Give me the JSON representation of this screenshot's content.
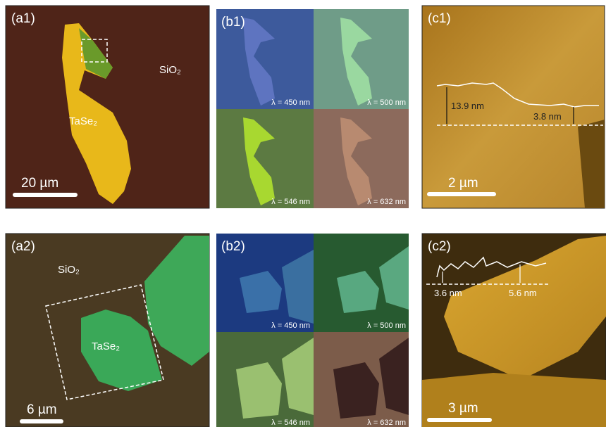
{
  "panels": [
    {
      "label": "(a1)",
      "substrate": "SiO₂",
      "flake": "TaSe₂",
      "scale_bar": "20 µm"
    },
    {
      "label": "(b1)",
      "wavelengths": [
        "λ = 450 nm",
        "λ = 500 nm",
        "λ = 546 nm",
        "λ = 632 nm"
      ]
    },
    {
      "label": "(c1)",
      "heights": [
        "13.9 nm",
        "3.8 nm"
      ],
      "scale_bar": "2 µm"
    },
    {
      "label": "(a2)",
      "substrate": "SiO₂",
      "flake": "TaSe₂",
      "scale_bar": "6 µm"
    },
    {
      "label": "(b2)",
      "wavelengths": [
        "λ = 450 nm",
        "λ = 500 nm",
        "λ = 546 nm",
        "λ = 632 nm"
      ]
    },
    {
      "label": "(c2)",
      "heights": [
        "3.6 nm",
        "5.6 nm"
      ],
      "scale_bar": "3 µm"
    }
  ]
}
